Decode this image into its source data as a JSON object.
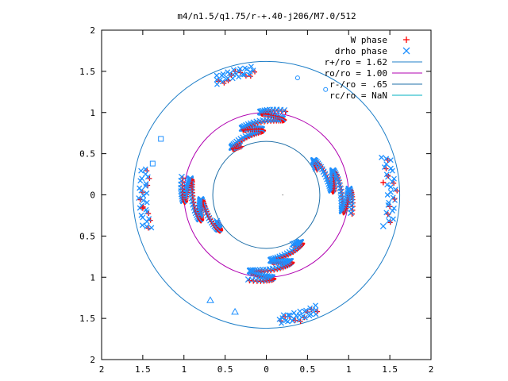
{
  "chart_data": {
    "type": "scatter",
    "title": "m4/n1.5/q1.75/r-+.40-j206/M7.0/512",
    "xlabel": "",
    "ylabel": "",
    "xlim": [
      -2,
      2
    ],
    "ylim": [
      -2,
      2
    ],
    "x_ticks": [
      {
        "value": -2,
        "label": "2"
      },
      {
        "value": -1.5,
        "label": "1.5"
      },
      {
        "value": -1,
        "label": "1"
      },
      {
        "value": -0.5,
        "label": "0.5"
      },
      {
        "value": 0,
        "label": "0"
      },
      {
        "value": 0.5,
        "label": "0.5"
      },
      {
        "value": 1,
        "label": "1"
      },
      {
        "value": 1.5,
        "label": "1.5"
      },
      {
        "value": 2,
        "label": "2"
      }
    ],
    "y_ticks": [
      {
        "value": 2,
        "label": "2"
      },
      {
        "value": 1.5,
        "label": "1.5"
      },
      {
        "value": 1,
        "label": "1"
      },
      {
        "value": 0.5,
        "label": "0.5"
      },
      {
        "value": 0,
        "label": "0"
      },
      {
        "value": -0.5,
        "label": "0.5"
      },
      {
        "value": -1,
        "label": "1"
      },
      {
        "value": -1.5,
        "label": "1.5"
      },
      {
        "value": -2,
        "label": "2"
      }
    ],
    "grid": false,
    "legend_position": "top-right",
    "legend": [
      {
        "label": "W phase",
        "color": "#ff0000",
        "marker": "plus"
      },
      {
        "label": "drho phase",
        "color": "#1e90ff",
        "marker": "cross"
      },
      {
        "label": "r+/ro = 1.62",
        "color": "#1f7fc8",
        "marker": "line"
      },
      {
        "label": "ro/ro = 1.00",
        "color": "#b000b0",
        "marker": "line"
      },
      {
        "label": "r-/ro = .65",
        "color": "#1f6fa8",
        "marker": "line"
      },
      {
        "label": "rc/ro = NaN",
        "color": "#00b0c0",
        "marker": "line"
      }
    ],
    "circles": [
      {
        "name": "r+/ro",
        "radius": 1.62,
        "color": "#1f7fc8"
      },
      {
        "name": "ro/ro",
        "radius": 1.0,
        "color": "#b000b0"
      },
      {
        "name": "r-/ro",
        "radius": 0.65,
        "color": "#1f6fa8"
      }
    ],
    "spiral_arms": {
      "count": 4,
      "base_angles_deg": [
        28,
        118,
        208,
        298
      ],
      "radius_range": [
        0.68,
        1.05
      ],
      "twist_deg": -40,
      "wiggle_deg": 12,
      "wiggle_cycles": 2.5
    },
    "outer_clusters": [
      {
        "angle_deg_from": 96,
        "angle_deg_to": 114,
        "radius": 1.52
      },
      {
        "angle_deg_from": 168,
        "angle_deg_to": 196,
        "radius": 1.5
      },
      {
        "angle_deg_from": -84,
        "angle_deg_to": -66,
        "radius": 1.52
      },
      {
        "angle_deg_from": -12,
        "angle_deg_to": 18,
        "radius": 1.52
      }
    ],
    "stray_points": [
      {
        "x": 0.38,
        "y": 1.42,
        "marker": "circle"
      },
      {
        "x": 0.72,
        "y": 1.28,
        "marker": "circle"
      },
      {
        "x": -1.38,
        "y": 0.38,
        "marker": "square"
      },
      {
        "x": -1.28,
        "y": 0.68,
        "marker": "square"
      },
      {
        "x": -0.68,
        "y": -1.28,
        "marker": "triangle"
      },
      {
        "x": -0.38,
        "y": -1.42,
        "marker": "triangle"
      },
      {
        "x": 1.42,
        "y": -0.38,
        "marker": "cross"
      },
      {
        "x": 1.42,
        "y": 0.15,
        "marker": "plus"
      },
      {
        "x": -1.5,
        "y": -0.16,
        "marker": "plus"
      },
      {
        "x": 0.2,
        "y": 0.0,
        "marker": "dot"
      }
    ]
  }
}
